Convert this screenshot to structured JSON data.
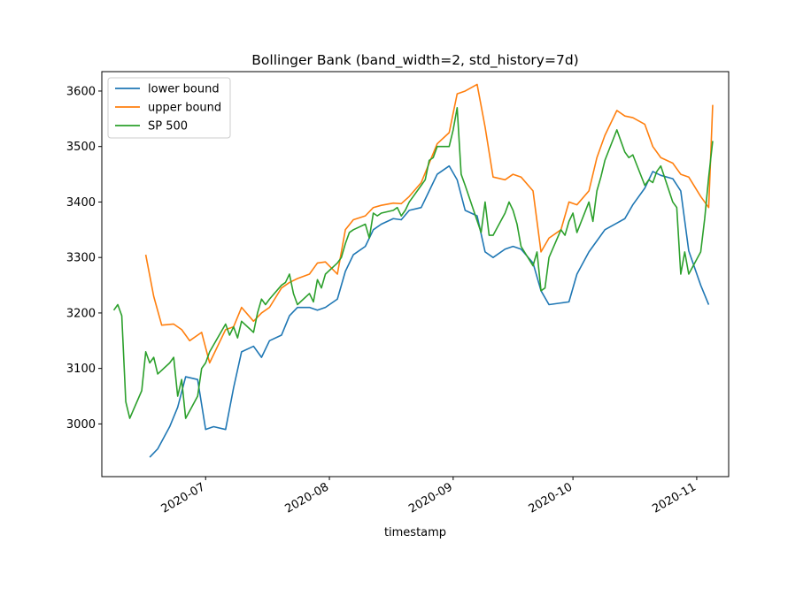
{
  "chart_data": {
    "type": "line",
    "title": "Bollinger Bank (band_width=2, std_history=7d)",
    "xlabel": "timestamp",
    "ylabel": "",
    "xlim": [
      "2020-06-05",
      "2020-11-09"
    ],
    "ylim": [
      2905,
      3635
    ],
    "x_ticks": [
      {
        "date": "2020-07-01",
        "label": "2020-07"
      },
      {
        "date": "2020-08-01",
        "label": "2020-08"
      },
      {
        "date": "2020-09-01",
        "label": "2020-09"
      },
      {
        "date": "2020-10-01",
        "label": "2020-10"
      },
      {
        "date": "2020-11-01",
        "label": "2020-11"
      }
    ],
    "y_ticks": [
      3000,
      3100,
      3200,
      3300,
      3400,
      3500,
      3600
    ],
    "grid": false,
    "legend_position": "top-left",
    "series": [
      {
        "name": "lower bound",
        "color": "#1f77b4",
        "x": [
          "2020-06-17",
          "2020-06-19",
          "2020-06-22",
          "2020-06-24",
          "2020-06-26",
          "2020-06-29",
          "2020-07-01",
          "2020-07-03",
          "2020-07-06",
          "2020-07-08",
          "2020-07-10",
          "2020-07-13",
          "2020-07-15",
          "2020-07-17",
          "2020-07-20",
          "2020-07-22",
          "2020-07-24",
          "2020-07-27",
          "2020-07-29",
          "2020-07-31",
          "2020-08-03",
          "2020-08-05",
          "2020-08-07",
          "2020-08-10",
          "2020-08-12",
          "2020-08-14",
          "2020-08-17",
          "2020-08-19",
          "2020-08-21",
          "2020-08-24",
          "2020-08-26",
          "2020-08-28",
          "2020-08-31",
          "2020-09-02",
          "2020-09-04",
          "2020-09-07",
          "2020-09-09",
          "2020-09-11",
          "2020-09-14",
          "2020-09-16",
          "2020-09-18",
          "2020-09-21",
          "2020-09-23",
          "2020-09-25",
          "2020-09-28",
          "2020-09-30",
          "2020-10-02",
          "2020-10-05",
          "2020-10-07",
          "2020-10-09",
          "2020-10-12",
          "2020-10-14",
          "2020-10-16",
          "2020-10-19",
          "2020-10-21",
          "2020-10-23",
          "2020-10-26",
          "2020-10-28",
          "2020-10-30",
          "2020-11-02",
          "2020-11-04"
        ],
        "values": [
          2940,
          2955,
          2995,
          3030,
          3085,
          3080,
          2990,
          2995,
          2990,
          3065,
          3130,
          3140,
          3120,
          3150,
          3160,
          3195,
          3210,
          3210,
          3205,
          3210,
          3225,
          3275,
          3305,
          3320,
          3350,
          3360,
          3370,
          3368,
          3385,
          3390,
          3420,
          3450,
          3465,
          3440,
          3385,
          3375,
          3310,
          3300,
          3315,
          3320,
          3315,
          3290,
          3240,
          3215,
          3218,
          3220,
          3270,
          3310,
          3330,
          3350,
          3362,
          3370,
          3395,
          3425,
          3455,
          3448,
          3442,
          3420,
          3312,
          3250,
          3215
        ]
      },
      {
        "name": "upper bound",
        "color": "#ff7f0e",
        "x": [
          "2020-06-16",
          "2020-06-18",
          "2020-06-20",
          "2020-06-23",
          "2020-06-25",
          "2020-06-27",
          "2020-06-30",
          "2020-07-02",
          "2020-07-06",
          "2020-07-08",
          "2020-07-10",
          "2020-07-13",
          "2020-07-15",
          "2020-07-17",
          "2020-07-20",
          "2020-07-22",
          "2020-07-24",
          "2020-07-27",
          "2020-07-29",
          "2020-07-31",
          "2020-08-03",
          "2020-08-05",
          "2020-08-07",
          "2020-08-10",
          "2020-08-12",
          "2020-08-14",
          "2020-08-17",
          "2020-08-19",
          "2020-08-21",
          "2020-08-24",
          "2020-08-26",
          "2020-08-28",
          "2020-08-31",
          "2020-09-02",
          "2020-09-04",
          "2020-09-07",
          "2020-09-09",
          "2020-09-11",
          "2020-09-14",
          "2020-09-16",
          "2020-09-18",
          "2020-09-21",
          "2020-09-23",
          "2020-09-25",
          "2020-09-28",
          "2020-09-30",
          "2020-10-02",
          "2020-10-05",
          "2020-10-07",
          "2020-10-09",
          "2020-10-12",
          "2020-10-14",
          "2020-10-16",
          "2020-10-19",
          "2020-10-21",
          "2020-10-23",
          "2020-10-26",
          "2020-10-28",
          "2020-10-30",
          "2020-11-02",
          "2020-11-04",
          "2020-11-05"
        ],
        "values": [
          3305,
          3230,
          3178,
          3180,
          3170,
          3150,
          3165,
          3110,
          3170,
          3175,
          3210,
          3185,
          3200,
          3210,
          3245,
          3255,
          3262,
          3270,
          3290,
          3292,
          3270,
          3350,
          3368,
          3375,
          3390,
          3394,
          3398,
          3397,
          3410,
          3435,
          3470,
          3505,
          3525,
          3595,
          3600,
          3612,
          3535,
          3445,
          3440,
          3450,
          3445,
          3420,
          3310,
          3335,
          3350,
          3400,
          3395,
          3420,
          3480,
          3520,
          3565,
          3555,
          3552,
          3540,
          3500,
          3480,
          3470,
          3450,
          3445,
          3410,
          3390,
          3575
        ]
      },
      {
        "name": "SP 500",
        "color": "#2ca02c",
        "x": [
          "2020-06-08",
          "2020-06-09",
          "2020-06-10",
          "2020-06-11",
          "2020-06-12",
          "2020-06-15",
          "2020-06-16",
          "2020-06-17",
          "2020-06-18",
          "2020-06-19",
          "2020-06-22",
          "2020-06-23",
          "2020-06-24",
          "2020-06-25",
          "2020-06-26",
          "2020-06-29",
          "2020-06-30",
          "2020-07-01",
          "2020-07-02",
          "2020-07-06",
          "2020-07-07",
          "2020-07-08",
          "2020-07-09",
          "2020-07-10",
          "2020-07-13",
          "2020-07-14",
          "2020-07-15",
          "2020-07-16",
          "2020-07-17",
          "2020-07-20",
          "2020-07-21",
          "2020-07-22",
          "2020-07-23",
          "2020-07-24",
          "2020-07-27",
          "2020-07-28",
          "2020-07-29",
          "2020-07-30",
          "2020-07-31",
          "2020-08-03",
          "2020-08-04",
          "2020-08-05",
          "2020-08-06",
          "2020-08-07",
          "2020-08-10",
          "2020-08-11",
          "2020-08-12",
          "2020-08-13",
          "2020-08-14",
          "2020-08-17",
          "2020-08-18",
          "2020-08-19",
          "2020-08-20",
          "2020-08-21",
          "2020-08-24",
          "2020-08-25",
          "2020-08-26",
          "2020-08-27",
          "2020-08-28",
          "2020-08-31",
          "2020-09-01",
          "2020-09-02",
          "2020-09-03",
          "2020-09-04",
          "2020-09-08",
          "2020-09-09",
          "2020-09-10",
          "2020-09-11",
          "2020-09-14",
          "2020-09-15",
          "2020-09-16",
          "2020-09-17",
          "2020-09-18",
          "2020-09-21",
          "2020-09-22",
          "2020-09-23",
          "2020-09-24",
          "2020-09-25",
          "2020-09-28",
          "2020-09-29",
          "2020-09-30",
          "2020-10-01",
          "2020-10-02",
          "2020-10-05",
          "2020-10-06",
          "2020-10-07",
          "2020-10-08",
          "2020-10-09",
          "2020-10-12",
          "2020-10-13",
          "2020-10-14",
          "2020-10-15",
          "2020-10-16",
          "2020-10-19",
          "2020-10-20",
          "2020-10-21",
          "2020-10-22",
          "2020-10-23",
          "2020-10-26",
          "2020-10-27",
          "2020-10-28",
          "2020-10-29",
          "2020-10-30",
          "2020-11-02",
          "2020-11-03",
          "2020-11-04",
          "2020-11-05"
        ],
        "values": [
          3205,
          3215,
          3195,
          3040,
          3010,
          3060,
          3130,
          3110,
          3120,
          3090,
          3110,
          3120,
          3050,
          3080,
          3010,
          3050,
          3100,
          3110,
          3130,
          3180,
          3160,
          3175,
          3155,
          3185,
          3165,
          3200,
          3225,
          3215,
          3225,
          3250,
          3255,
          3270,
          3235,
          3215,
          3235,
          3220,
          3260,
          3245,
          3270,
          3290,
          3300,
          3325,
          3345,
          3350,
          3360,
          3335,
          3380,
          3375,
          3380,
          3385,
          3390,
          3375,
          3385,
          3400,
          3430,
          3440,
          3475,
          3480,
          3500,
          3500,
          3530,
          3570,
          3450,
          3430,
          3345,
          3400,
          3340,
          3340,
          3380,
          3400,
          3385,
          3360,
          3320,
          3285,
          3310,
          3240,
          3245,
          3300,
          3350,
          3340,
          3365,
          3380,
          3345,
          3400,
          3365,
          3420,
          3445,
          3475,
          3530,
          3510,
          3490,
          3480,
          3485,
          3430,
          3440,
          3435,
          3455,
          3465,
          3400,
          3390,
          3270,
          3310,
          3270,
          3310,
          3370,
          3445,
          3510
        ]
      }
    ]
  }
}
